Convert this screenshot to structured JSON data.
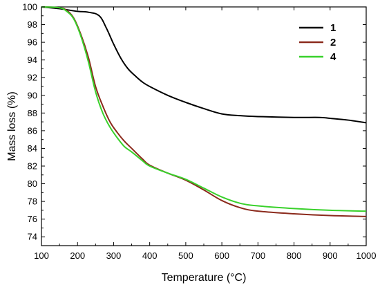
{
  "chart_data": {
    "type": "line",
    "title": "",
    "xlabel": "Temperature (°C)",
    "ylabel": "Mass loss (%)",
    "xlim": [
      100,
      1000
    ],
    "ylim": [
      73,
      100
    ],
    "xticks": [
      100,
      200,
      300,
      400,
      500,
      600,
      700,
      800,
      900,
      1000
    ],
    "yticks": [
      74,
      76,
      78,
      80,
      82,
      84,
      86,
      88,
      90,
      92,
      94,
      96,
      98,
      100
    ],
    "grid": false,
    "legend": {
      "position": "top-right"
    },
    "series": [
      {
        "name": "1",
        "color": "#000000",
        "x": [
          100,
          150,
          200,
          230,
          260,
          280,
          300,
          320,
          340,
          360,
          380,
          400,
          450,
          500,
          550,
          600,
          650,
          700,
          800,
          870,
          900,
          950,
          1000
        ],
        "y": [
          100,
          99.8,
          99.5,
          99.4,
          99.0,
          97.6,
          95.8,
          94.2,
          93.0,
          92.2,
          91.5,
          91.0,
          90.0,
          89.2,
          88.5,
          87.9,
          87.7,
          87.6,
          87.5,
          87.5,
          87.4,
          87.2,
          86.9
        ]
      },
      {
        "name": "2",
        "color": "#8b2a1c",
        "x": [
          100,
          150,
          170,
          190,
          210,
          230,
          250,
          270,
          290,
          310,
          330,
          350,
          380,
          400,
          450,
          500,
          550,
          600,
          650,
          700,
          800,
          900,
          1000
        ],
        "y": [
          100,
          99.9,
          99.6,
          98.7,
          96.8,
          94.3,
          91.0,
          88.8,
          87.0,
          85.8,
          84.8,
          84.0,
          82.8,
          82.1,
          81.2,
          80.4,
          79.3,
          78.1,
          77.3,
          76.9,
          76.6,
          76.4,
          76.3
        ]
      },
      {
        "name": "4",
        "color": "#39d12b",
        "x": [
          100,
          150,
          170,
          190,
          210,
          230,
          250,
          270,
          290,
          310,
          330,
          350,
          380,
          400,
          450,
          500,
          550,
          600,
          650,
          700,
          800,
          900,
          1000
        ],
        "y": [
          100,
          99.9,
          99.5,
          98.6,
          96.6,
          93.8,
          90.4,
          88.0,
          86.4,
          85.2,
          84.2,
          83.6,
          82.6,
          82.0,
          81.2,
          80.5,
          79.5,
          78.5,
          77.8,
          77.5,
          77.2,
          77.0,
          76.9
        ]
      }
    ]
  }
}
